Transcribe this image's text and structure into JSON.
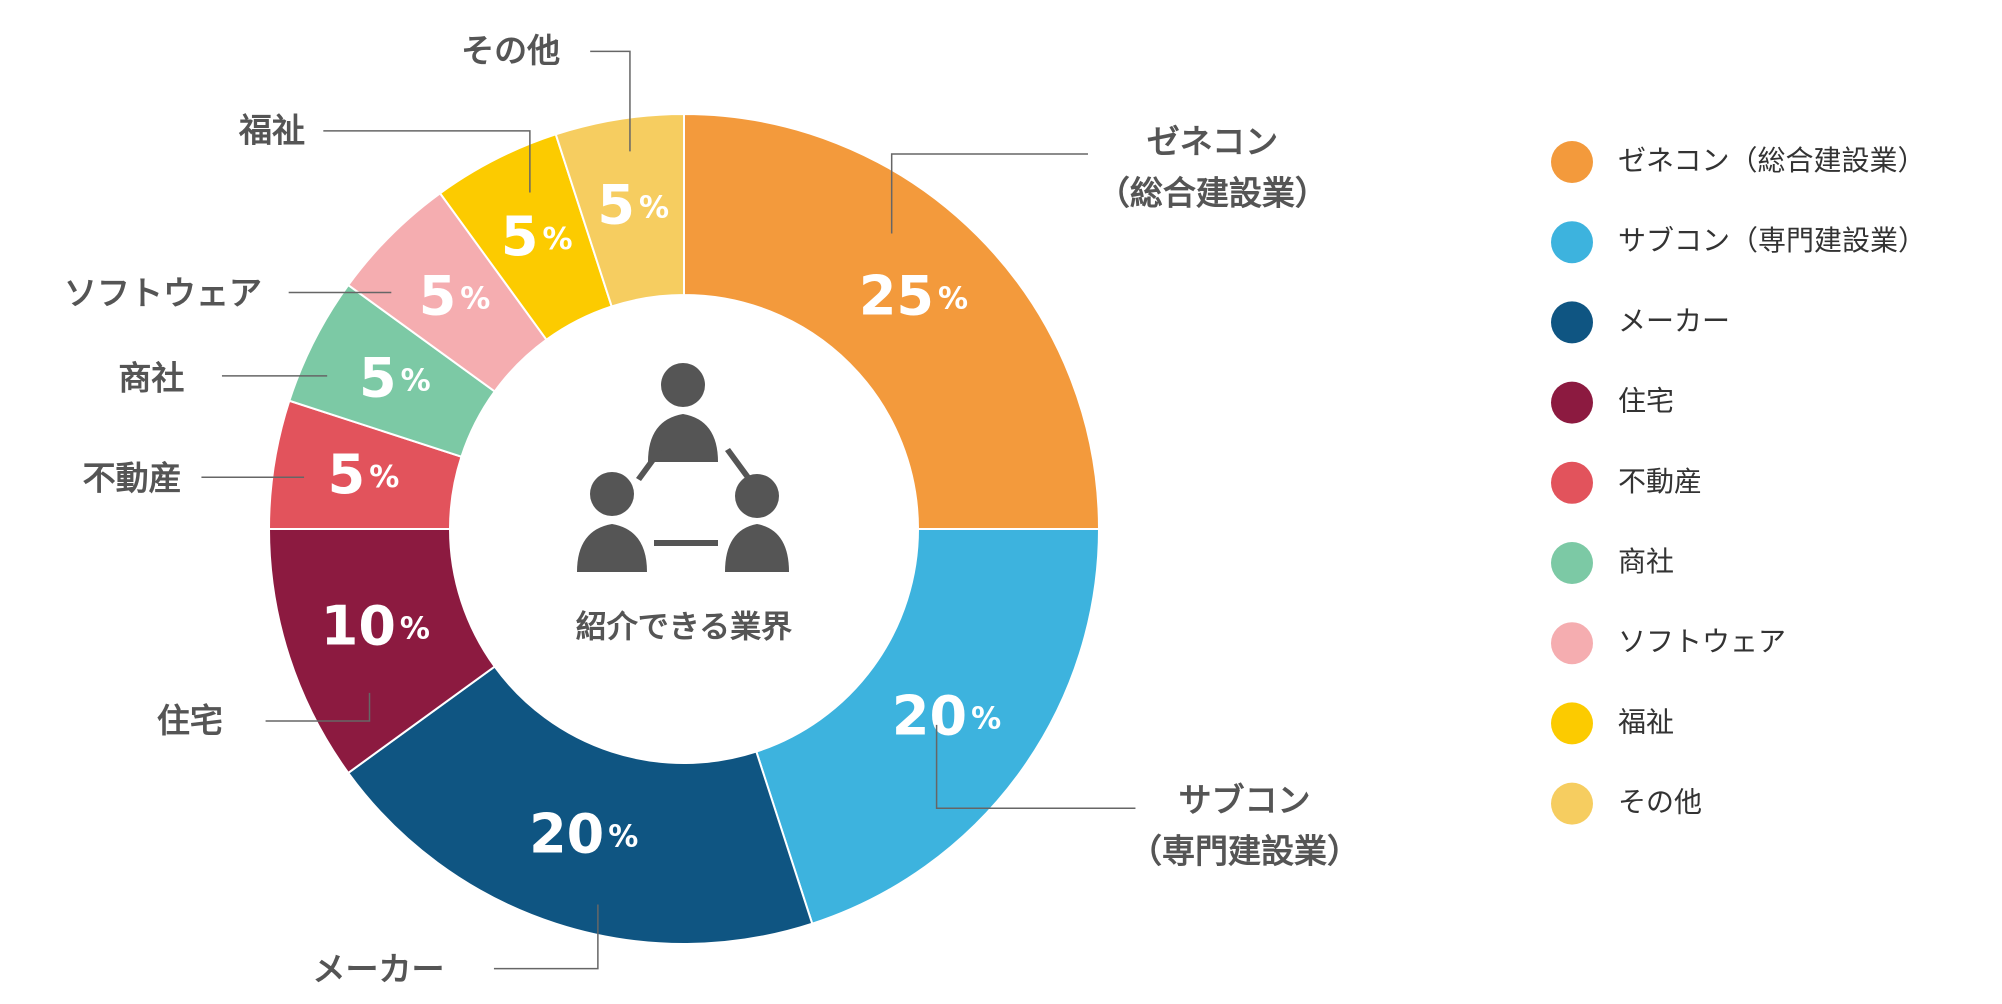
{
  "chart_data": {
    "type": "donut",
    "center_label": "紹介できる業界",
    "categories": [
      "ゼネコン（総合建設業）",
      "サブコン（専門建設業）",
      "メーカー",
      "住宅",
      "不動産",
      "商社",
      "ソフトウェア",
      "福祉",
      "その他"
    ],
    "callout_labels": [
      [
        "ゼネコン",
        "（総合建設業）"
      ],
      [
        "サブコン",
        "（専門建設業）"
      ],
      [
        "メーカー"
      ],
      [
        "住宅"
      ],
      [
        "不動産"
      ],
      [
        "商社"
      ],
      [
        "ソフトウェア"
      ],
      [
        "福祉"
      ],
      [
        "その他"
      ]
    ],
    "values": [
      25,
      20,
      20,
      10,
      5,
      5,
      5,
      5,
      5
    ],
    "value_labels": [
      "25%",
      "20%",
      "20%",
      "10%",
      "5%",
      "5%",
      "5%",
      "5%",
      "5%"
    ],
    "colors": [
      "#f39a3c",
      "#3db3de",
      "#0f5582",
      "#8c1a40",
      "#e2535c",
      "#7cc9a5",
      "#f5adb0",
      "#fccb00",
      "#f6cd60"
    ],
    "legend": "right"
  }
}
